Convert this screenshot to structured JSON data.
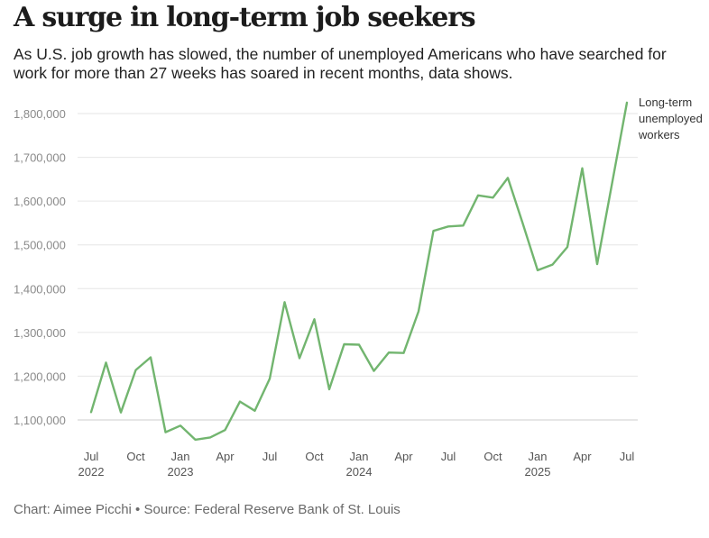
{
  "header": {
    "title": "A surge in long-term job seekers",
    "subtitle": "As U.S. job growth has slowed, the number of unemployed Americans who have searched for work for more than 27 weeks has soared in recent months, data shows."
  },
  "footer": {
    "credit": "Chart: Aimee Picchi • Source: Federal Reserve Bank of St. Louis"
  },
  "colors": {
    "line": "#72b56f",
    "grid": "#e6e6e6",
    "baseline": "#cccccc"
  },
  "chart_data": {
    "type": "line",
    "title": "A surge in long-term job seekers",
    "xlabel": "",
    "ylabel": "",
    "ylim": [
      1050000,
      1850000
    ],
    "y_ticks": [
      {
        "value": 1100000,
        "label": "1,100,000"
      },
      {
        "value": 1200000,
        "label": "1,200,000"
      },
      {
        "value": 1300000,
        "label": "1,300,000"
      },
      {
        "value": 1400000,
        "label": "1,400,000"
      },
      {
        "value": 1500000,
        "label": "1,500,000"
      },
      {
        "value": 1600000,
        "label": "1,600,000"
      },
      {
        "value": 1700000,
        "label": "1,700,000"
      },
      {
        "value": 1800000,
        "label": "1,800,000"
      }
    ],
    "x_ticks": [
      {
        "index": 0,
        "label": "Jul",
        "sublabel": "2022"
      },
      {
        "index": 3,
        "label": "Oct",
        "sublabel": ""
      },
      {
        "index": 6,
        "label": "Jan",
        "sublabel": "2023"
      },
      {
        "index": 9,
        "label": "Apr",
        "sublabel": ""
      },
      {
        "index": 12,
        "label": "Jul",
        "sublabel": ""
      },
      {
        "index": 15,
        "label": "Oct",
        "sublabel": ""
      },
      {
        "index": 18,
        "label": "Jan",
        "sublabel": "2024"
      },
      {
        "index": 21,
        "label": "Apr",
        "sublabel": ""
      },
      {
        "index": 24,
        "label": "Jul",
        "sublabel": ""
      },
      {
        "index": 27,
        "label": "Oct",
        "sublabel": ""
      },
      {
        "index": 30,
        "label": "Jan",
        "sublabel": "2025"
      },
      {
        "index": 33,
        "label": "Apr",
        "sublabel": ""
      },
      {
        "index": 36,
        "label": "Jul",
        "sublabel": ""
      }
    ],
    "series": [
      {
        "name": "Long-term unemployed workers",
        "legend_lines": [
          "Long-term",
          "unemployed",
          "workers"
        ],
        "x": [
          "2022-07",
          "2022-08",
          "2022-09",
          "2022-10",
          "2022-11",
          "2022-12",
          "2023-01",
          "2023-02",
          "2023-03",
          "2023-04",
          "2023-05",
          "2023-06",
          "2023-07",
          "2023-08",
          "2023-09",
          "2023-10",
          "2023-11",
          "2023-12",
          "2024-01",
          "2024-02",
          "2024-03",
          "2024-04",
          "2024-05",
          "2024-06",
          "2024-07",
          "2024-08",
          "2024-09",
          "2024-10",
          "2024-11",
          "2024-12",
          "2025-01",
          "2025-02",
          "2025-03",
          "2025-04",
          "2025-05",
          "2025-06",
          "2025-07"
        ],
        "values": [
          1118000,
          1231000,
          1117000,
          1214000,
          1243000,
          1072000,
          1087000,
          1055000,
          1060000,
          1077000,
          1142000,
          1121000,
          1194000,
          1369000,
          1241000,
          1330000,
          1170000,
          1273000,
          1272000,
          1212000,
          1254000,
          1253000,
          1348000,
          1532000,
          1542000,
          1544000,
          1613000,
          1608000,
          1653000,
          1549000,
          1442000,
          1455000,
          1495000,
          1675000,
          1456000,
          1640000,
          1825000
        ]
      }
    ]
  }
}
